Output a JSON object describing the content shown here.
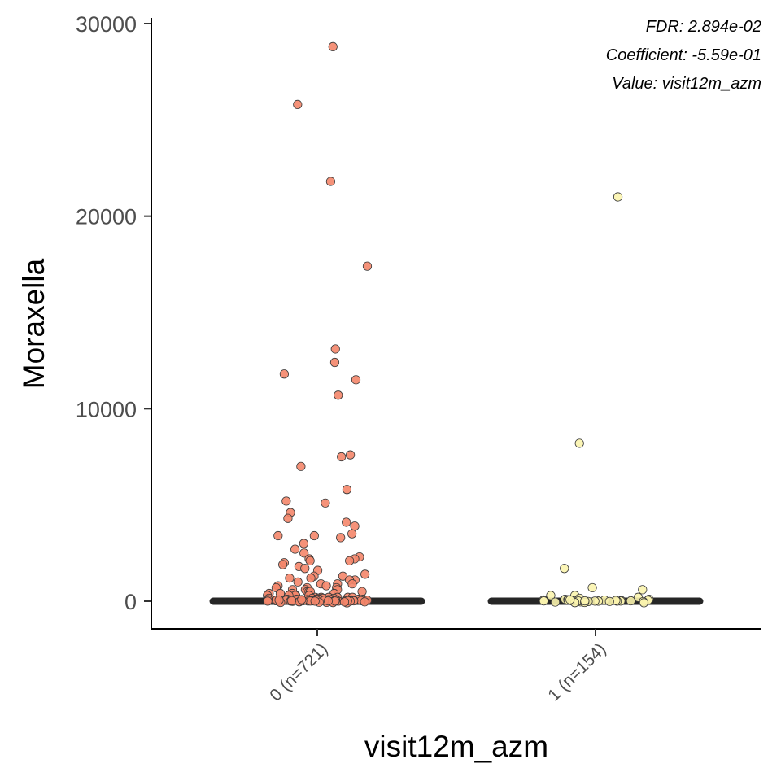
{
  "chart_data": {
    "type": "scatter",
    "subtype": "jittered strip plot with median line",
    "xlabel": "visit12m_azm",
    "ylabel": "Moraxella",
    "ylim": [
      -1400,
      30500
    ],
    "yticks": [
      0,
      10000,
      20000,
      30000
    ],
    "categories": [
      "0 (n=721)",
      "1 (n=154)"
    ],
    "annotations": [
      "FDR: 2.894e-02",
      "Coefficient: -5.59e-01",
      "Value: visit12m_azm"
    ],
    "grid": false,
    "legend": "none",
    "series": [
      {
        "category": "0 (n=721)",
        "color": "#f4866a",
        "median": 0,
        "values": [
          28800,
          25800,
          21800,
          17400,
          13100,
          12400,
          11800,
          11500,
          10700,
          7600,
          7500,
          7000,
          5800,
          5200,
          5100,
          4600,
          4300,
          4100,
          3900,
          3500,
          3400,
          3400,
          3300,
          3000,
          2700,
          2500,
          2300,
          2200,
          2200,
          2100,
          2100,
          2000,
          1900,
          1800,
          1700,
          1600,
          1400,
          1300,
          1300,
          1200,
          1200,
          1100,
          1100,
          1000,
          900,
          900,
          900,
          800,
          800,
          700,
          700,
          700,
          600,
          600,
          600,
          500,
          500,
          500,
          500,
          400,
          400,
          400,
          400,
          300,
          300,
          300,
          300,
          300,
          200,
          200,
          200,
          200,
          200,
          200,
          150,
          150,
          150,
          150,
          150,
          100,
          100,
          100,
          100,
          100,
          100,
          80,
          80,
          80,
          80,
          80,
          60,
          60,
          60,
          60,
          50,
          50,
          50,
          50,
          40,
          40,
          40,
          40,
          30,
          30,
          30,
          30,
          20,
          20,
          20,
          20,
          10,
          10,
          10,
          10,
          5,
          5,
          5,
          5,
          0,
          0,
          0,
          0,
          0,
          0,
          0,
          0,
          0,
          0,
          0,
          0,
          0,
          0,
          0,
          0,
          0,
          0,
          0,
          0,
          0,
          0,
          0,
          0
        ]
      },
      {
        "category": "1 (n=154)",
        "color": "#fbf4ae",
        "median": 0,
        "values": [
          21000,
          8200,
          1700,
          700,
          600,
          300,
          300,
          200,
          150,
          100,
          100,
          80,
          60,
          50,
          50,
          40,
          30,
          20,
          20,
          10,
          10,
          5,
          5,
          0,
          0,
          0,
          0,
          0,
          0,
          0,
          0,
          0,
          0,
          0,
          0,
          0,
          0,
          0
        ]
      }
    ]
  }
}
